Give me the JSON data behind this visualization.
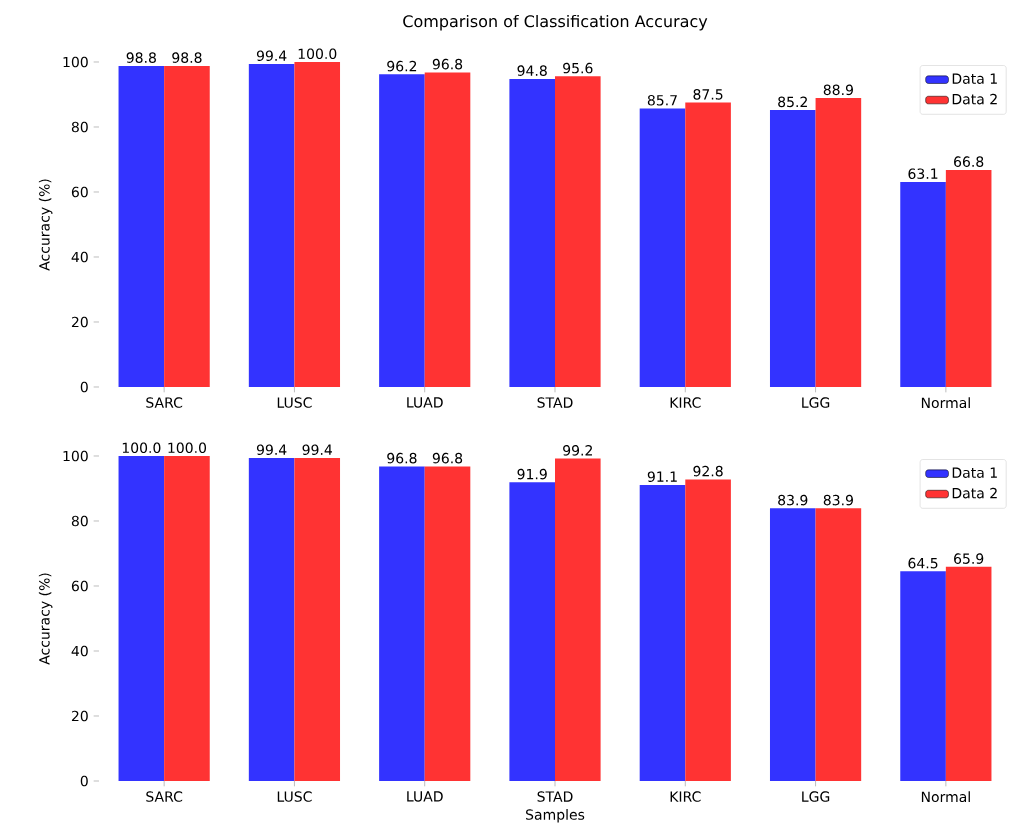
{
  "chart_data": [
    {
      "type": "bar",
      "title": "Comparison of Classification Accuracy",
      "ylabel": "Accuracy (%)",
      "categories": [
        "SARC",
        "LUSC",
        "LUAD",
        "STAD",
        "KIRC",
        "LGG",
        "Normal"
      ],
      "series": [
        {
          "name": "Data 1",
          "color": "#3333ff",
          "values": [
            98.8,
            99.4,
            96.2,
            94.8,
            85.7,
            85.2,
            63.1
          ],
          "value_labels": [
            "98.8",
            "99.4",
            "96.2",
            "94.8",
            "85.7",
            "85.2",
            "63.1"
          ]
        },
        {
          "name": "Data 2",
          "color": "#ff3333",
          "values": [
            98.8,
            100.0,
            96.8,
            95.6,
            87.5,
            88.9,
            66.8
          ],
          "value_labels": [
            "98.8",
            "100.0",
            "96.8",
            "95.6",
            "87.5",
            "88.9",
            "66.8"
          ]
        }
      ],
      "ylim": [
        0,
        100
      ],
      "yticks": [
        0,
        20,
        40,
        60,
        80,
        100
      ],
      "legend": "top right"
    },
    {
      "type": "bar",
      "xlabel": "Samples",
      "ylabel": "Accuracy (%)",
      "categories": [
        "SARC",
        "LUSC",
        "LUAD",
        "STAD",
        "KIRC",
        "LGG",
        "Normal"
      ],
      "series": [
        {
          "name": "Data 1",
          "color": "#3333ff",
          "values": [
            100.0,
            99.4,
            96.8,
            91.9,
            91.1,
            83.9,
            64.5
          ],
          "value_labels": [
            "100.0",
            "99.4",
            "96.8",
            "91.9",
            "91.1",
            "83.9",
            "64.5"
          ]
        },
        {
          "name": "Data 2",
          "color": "#ff3333",
          "values": [
            100.0,
            99.4,
            96.8,
            99.2,
            92.8,
            83.9,
            65.9
          ],
          "value_labels": [
            "100.0",
            "99.4",
            "96.8",
            "99.2",
            "92.8",
            "83.9",
            "65.9"
          ]
        }
      ],
      "ylim": [
        0,
        100
      ],
      "yticks": [
        0,
        20,
        40,
        60,
        80,
        100
      ],
      "legend": "top right"
    }
  ]
}
